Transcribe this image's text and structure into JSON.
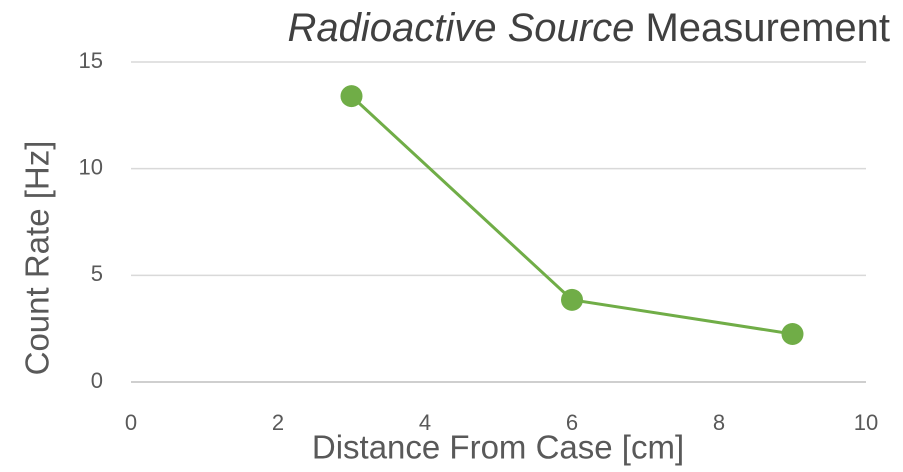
{
  "chart_data": {
    "type": "line",
    "title": [
      "Radioactive Source",
      "Measurement"
    ],
    "x_label": "Distance From Case [cm]",
    "y_label": "Count Rate [Hz]",
    "x": [
      3,
      6,
      9
    ],
    "series": [
      {
        "name": "Count Rate",
        "color": "#70ad47",
        "values": [
          13.4,
          3.85,
          2.25
        ]
      }
    ],
    "xlim": [
      0,
      10
    ],
    "xticks": [
      0,
      2,
      4,
      6,
      8,
      10
    ],
    "ylim": [
      0,
      15
    ],
    "yticks": [
      0,
      5,
      10,
      15
    ],
    "grid": true,
    "markers": true
  }
}
